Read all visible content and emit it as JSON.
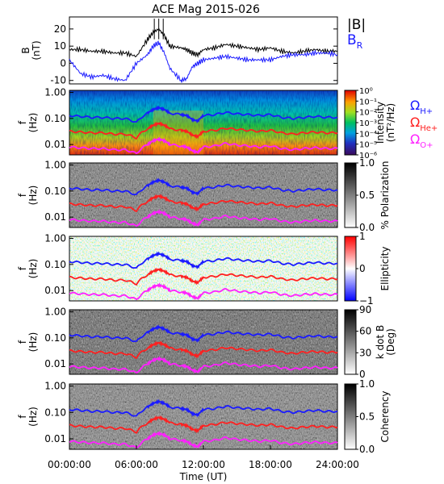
{
  "title": "ACE Mag 2015-026",
  "x_axis": {
    "label": "Time (UT)",
    "ticks": [
      "00:00:00",
      "06:00:00",
      "12:00:00",
      "18:00:00",
      "24:00:00"
    ],
    "range_hours": [
      0,
      24
    ]
  },
  "legend": {
    "line1": [
      {
        "text": "|B|",
        "color": "#000000"
      },
      {
        "text": "B",
        "sub": "R",
        "color": "#1a1aff"
      }
    ],
    "line2": [
      {
        "text": "Ω",
        "sub": "H+",
        "color": "#1a1aff"
      },
      {
        "text": "Ω",
        "sub": "He+",
        "color": "#ff2020"
      },
      {
        "text": "Ω",
        "sub": "O+",
        "color": "#ff20ff"
      }
    ]
  },
  "colors": {
    "absB": "#000000",
    "BR": "#1a1aff",
    "cyclotron_H": "#1a1aff",
    "cyclotron_He": "#ff2020",
    "cyclotron_O": "#ff20ff"
  },
  "chart_data": [
    {
      "type": "line",
      "panel": "B",
      "ylabel": "B",
      "yunit": "(nT)",
      "yticks": [
        "20",
        "10",
        "0",
        "-10"
      ],
      "ylim": [
        -12,
        27
      ],
      "x_hours": [
        0,
        1,
        2,
        3,
        4,
        5,
        6,
        7,
        7.5,
        8,
        8.5,
        9,
        10,
        10.5,
        11,
        11.5,
        12,
        13,
        14,
        15,
        16,
        17,
        18,
        19,
        20,
        21,
        22,
        23,
        24
      ],
      "series": [
        {
          "name": "|B|",
          "color": "#000000",
          "values": [
            8,
            8,
            7,
            7,
            6,
            6,
            4,
            14,
            18,
            20,
            16,
            10,
            9,
            8,
            6,
            5,
            8,
            9,
            11,
            10,
            9,
            8,
            9,
            7,
            6,
            7,
            8,
            7,
            7
          ]
        },
        {
          "name": "B_R",
          "color": "#1a1aff",
          "values": [
            2,
            -6,
            -8,
            -7,
            -9,
            -10,
            0,
            5,
            10,
            12,
            6,
            -3,
            -10,
            -9,
            -2,
            0,
            2,
            3,
            4,
            3,
            2,
            2,
            2,
            4,
            5,
            5,
            6,
            6,
            5
          ]
        }
      ]
    },
    {
      "type": "heatmap",
      "panel": "Intensity",
      "ylabel": "f",
      "yunit": "(Hz)",
      "yticks": [
        "1.00",
        "0.10",
        "0.01"
      ],
      "ylim": [
        0.004,
        1.2
      ],
      "yscale": "log",
      "colorbar": {
        "label": "Intensity",
        "unit": "(nT²/Hz)",
        "scale": "rainbow",
        "ticks": [
          "10⁰",
          "10⁻¹",
          "10⁻²",
          "10⁻³",
          "10⁻⁴",
          "10⁻⁵",
          "10⁻⁶"
        ]
      }
    },
    {
      "type": "heatmap",
      "panel": "% Polarization",
      "ylabel": "f",
      "yunit": "(Hz)",
      "yticks": [
        "1.00",
        "0.10",
        "0.01"
      ],
      "ylim": [
        0.004,
        1.2
      ],
      "yscale": "log",
      "colorbar": {
        "label": "% Polarization",
        "scale": "gray",
        "ticks": [
          "1.0",
          "0.5",
          "0.0"
        ]
      }
    },
    {
      "type": "heatmap",
      "panel": "Ellipticity",
      "ylabel": "f",
      "yunit": "(Hz)",
      "yticks": [
        "1.00",
        "0.10",
        "0.01"
      ],
      "ylim": [
        0.004,
        1.2
      ],
      "yscale": "log",
      "colorbar": {
        "label": "Ellipticity",
        "scale": "bwr",
        "ticks": [
          "1",
          "0",
          "−1"
        ]
      }
    },
    {
      "type": "heatmap",
      "panel": "k dot B",
      "ylabel": "f",
      "yunit": "(Hz)",
      "yticks": [
        "1.00",
        "0.10",
        "0.01"
      ],
      "ylim": [
        0.004,
        1.2
      ],
      "yscale": "log",
      "colorbar": {
        "label": "k dot B",
        "unit": "(Deg)",
        "scale": "gray",
        "ticks": [
          "90",
          "60",
          "30",
          "0"
        ]
      }
    },
    {
      "type": "heatmap",
      "panel": "Coherency",
      "ylabel": "f",
      "yunit": "(Hz)",
      "yticks": [
        "1.00",
        "0.10",
        "0.01"
      ],
      "ylim": [
        0.004,
        1.2
      ],
      "yscale": "log",
      "colorbar": {
        "label": "Coherency",
        "scale": "gray",
        "ticks": [
          "1.0",
          "0.5",
          "0.0"
        ]
      }
    },
    {
      "type": "line",
      "panel": "cyclotron frequencies (overlaid on all spectral panels)",
      "x_hours": [
        0,
        1,
        2,
        3,
        4,
        5,
        6,
        7,
        7.5,
        8,
        8.5,
        9,
        10,
        10.5,
        11,
        11.5,
        12,
        13,
        14,
        15,
        16,
        17,
        18,
        19,
        20,
        21,
        22,
        23,
        24
      ],
      "series": [
        {
          "name": "ΩH+",
          "color": "#1a1aff",
          "values": [
            0.13,
            0.12,
            0.11,
            0.11,
            0.1,
            0.1,
            0.07,
            0.16,
            0.22,
            0.26,
            0.22,
            0.16,
            0.14,
            0.13,
            0.09,
            0.08,
            0.13,
            0.14,
            0.17,
            0.15,
            0.14,
            0.13,
            0.14,
            0.11,
            0.1,
            0.11,
            0.12,
            0.11,
            0.11
          ]
        },
        {
          "name": "ΩHe+",
          "color": "#ff2020",
          "values": [
            0.032,
            0.03,
            0.028,
            0.028,
            0.025,
            0.025,
            0.018,
            0.04,
            0.055,
            0.065,
            0.055,
            0.04,
            0.035,
            0.032,
            0.023,
            0.02,
            0.032,
            0.035,
            0.042,
            0.038,
            0.035,
            0.032,
            0.035,
            0.028,
            0.025,
            0.028,
            0.03,
            0.028,
            0.028
          ]
        },
        {
          "name": "ΩO+",
          "color": "#ff20ff",
          "values": [
            0.008,
            0.0075,
            0.007,
            0.007,
            0.0063,
            0.0063,
            0.0045,
            0.01,
            0.014,
            0.016,
            0.014,
            0.01,
            0.0088,
            0.008,
            0.0058,
            0.005,
            0.008,
            0.0088,
            0.011,
            0.0095,
            0.0088,
            0.008,
            0.0088,
            0.007,
            0.0063,
            0.007,
            0.0075,
            0.007,
            0.007
          ]
        }
      ]
    }
  ]
}
